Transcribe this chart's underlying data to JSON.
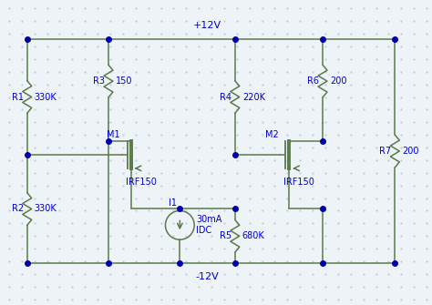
{
  "background_color": "#eef3f8",
  "dot_color": "#c0ccd8",
  "wire_color": "#5a7a4a",
  "text_color": "#0000cc",
  "node_color": "#0000aa",
  "figsize": [
    4.74,
    3.35
  ],
  "dpi": 100,
  "vdd_label": "+12V",
  "vss_label": "-12V",
  "labels": {
    "R1": "R1",
    "R1v": "330K",
    "R2": "R2",
    "R2v": "330K",
    "R3": "R3",
    "R3v": "150",
    "R4": "R4",
    "R4v": "220K",
    "R5": "R5",
    "R5v": "680K",
    "R6": "R6",
    "R6v": "200",
    "R7": "R7",
    "R7v": "200",
    "M1": "M1",
    "M1m": "IRF150",
    "M2": "M2",
    "M2m": "IRF150",
    "I1": "I1",
    "I1v": "30mA",
    "I1t": "IDC"
  }
}
